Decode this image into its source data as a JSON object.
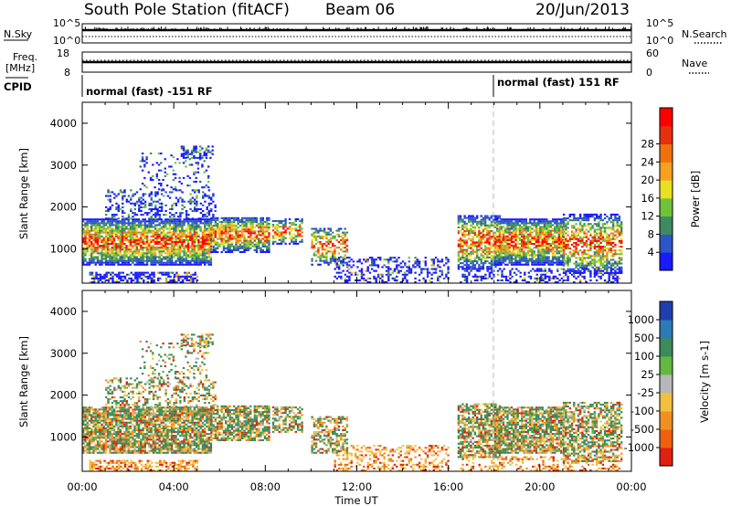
{
  "header": {
    "station": "South Pole Station (fitACF)",
    "beam": "Beam 06",
    "date": "20/Jun/2013"
  },
  "side_labels": {
    "nsky": "N.Sky",
    "nsearch": "N.Search",
    "freq": "Freq.",
    "freq_unit": "[MHz]",
    "nave": "Nave",
    "cpid": "CPID"
  },
  "noise_axis": {
    "left_top": "10^5",
    "left_bottom": "10^0",
    "right_top": "10^5",
    "right_bottom": "10^0"
  },
  "freq_axis": {
    "left_top": "18",
    "left_bottom": "8",
    "right_top": "60",
    "right_bottom": "0"
  },
  "cpid_segments": [
    "normal (fast) -151 RF",
    "normal (fast) 151 RF"
  ],
  "chart_data": [
    {
      "type": "heatmap",
      "panel": "power",
      "ylabel": "Slant Range [km]",
      "yticks": [
        "1000",
        "2000",
        "3000",
        "4000"
      ],
      "ylim": [
        180,
        4500
      ],
      "colorbar_label": "Power [dB]",
      "colorbar_ticks": [
        "4",
        "8",
        "12",
        "16",
        "20",
        "24",
        "28"
      ],
      "colorbar_colors": [
        "#1a1aff",
        "#2c55c8",
        "#3f8a5e",
        "#6fc23a",
        "#e8e020",
        "#f5a020",
        "#f07010",
        "#e63010",
        "#ff0000"
      ]
    },
    {
      "type": "heatmap",
      "panel": "velocity",
      "ylabel": "Slant Range [km]",
      "yticks": [
        "1000",
        "2000",
        "3000",
        "4000"
      ],
      "ylim": [
        180,
        4500
      ],
      "colorbar_label": "Velocity [m s-1]",
      "colorbar_ticks": [
        "1000",
        "500",
        "100",
        "25",
        "-25",
        "-100",
        "-500",
        "-1000"
      ],
      "colorbar_colors": [
        "#1f3fb0",
        "#2c7ab8",
        "#3d8a5a",
        "#62b840",
        "#b8b8b8",
        "#f2c040",
        "#f09020",
        "#f06010",
        "#e02010"
      ],
      "xlabel": "Time UT",
      "xticks": [
        "00:00",
        "04:00",
        "08:00",
        "12:00",
        "16:00",
        "20:00",
        "00:00"
      ]
    }
  ]
}
